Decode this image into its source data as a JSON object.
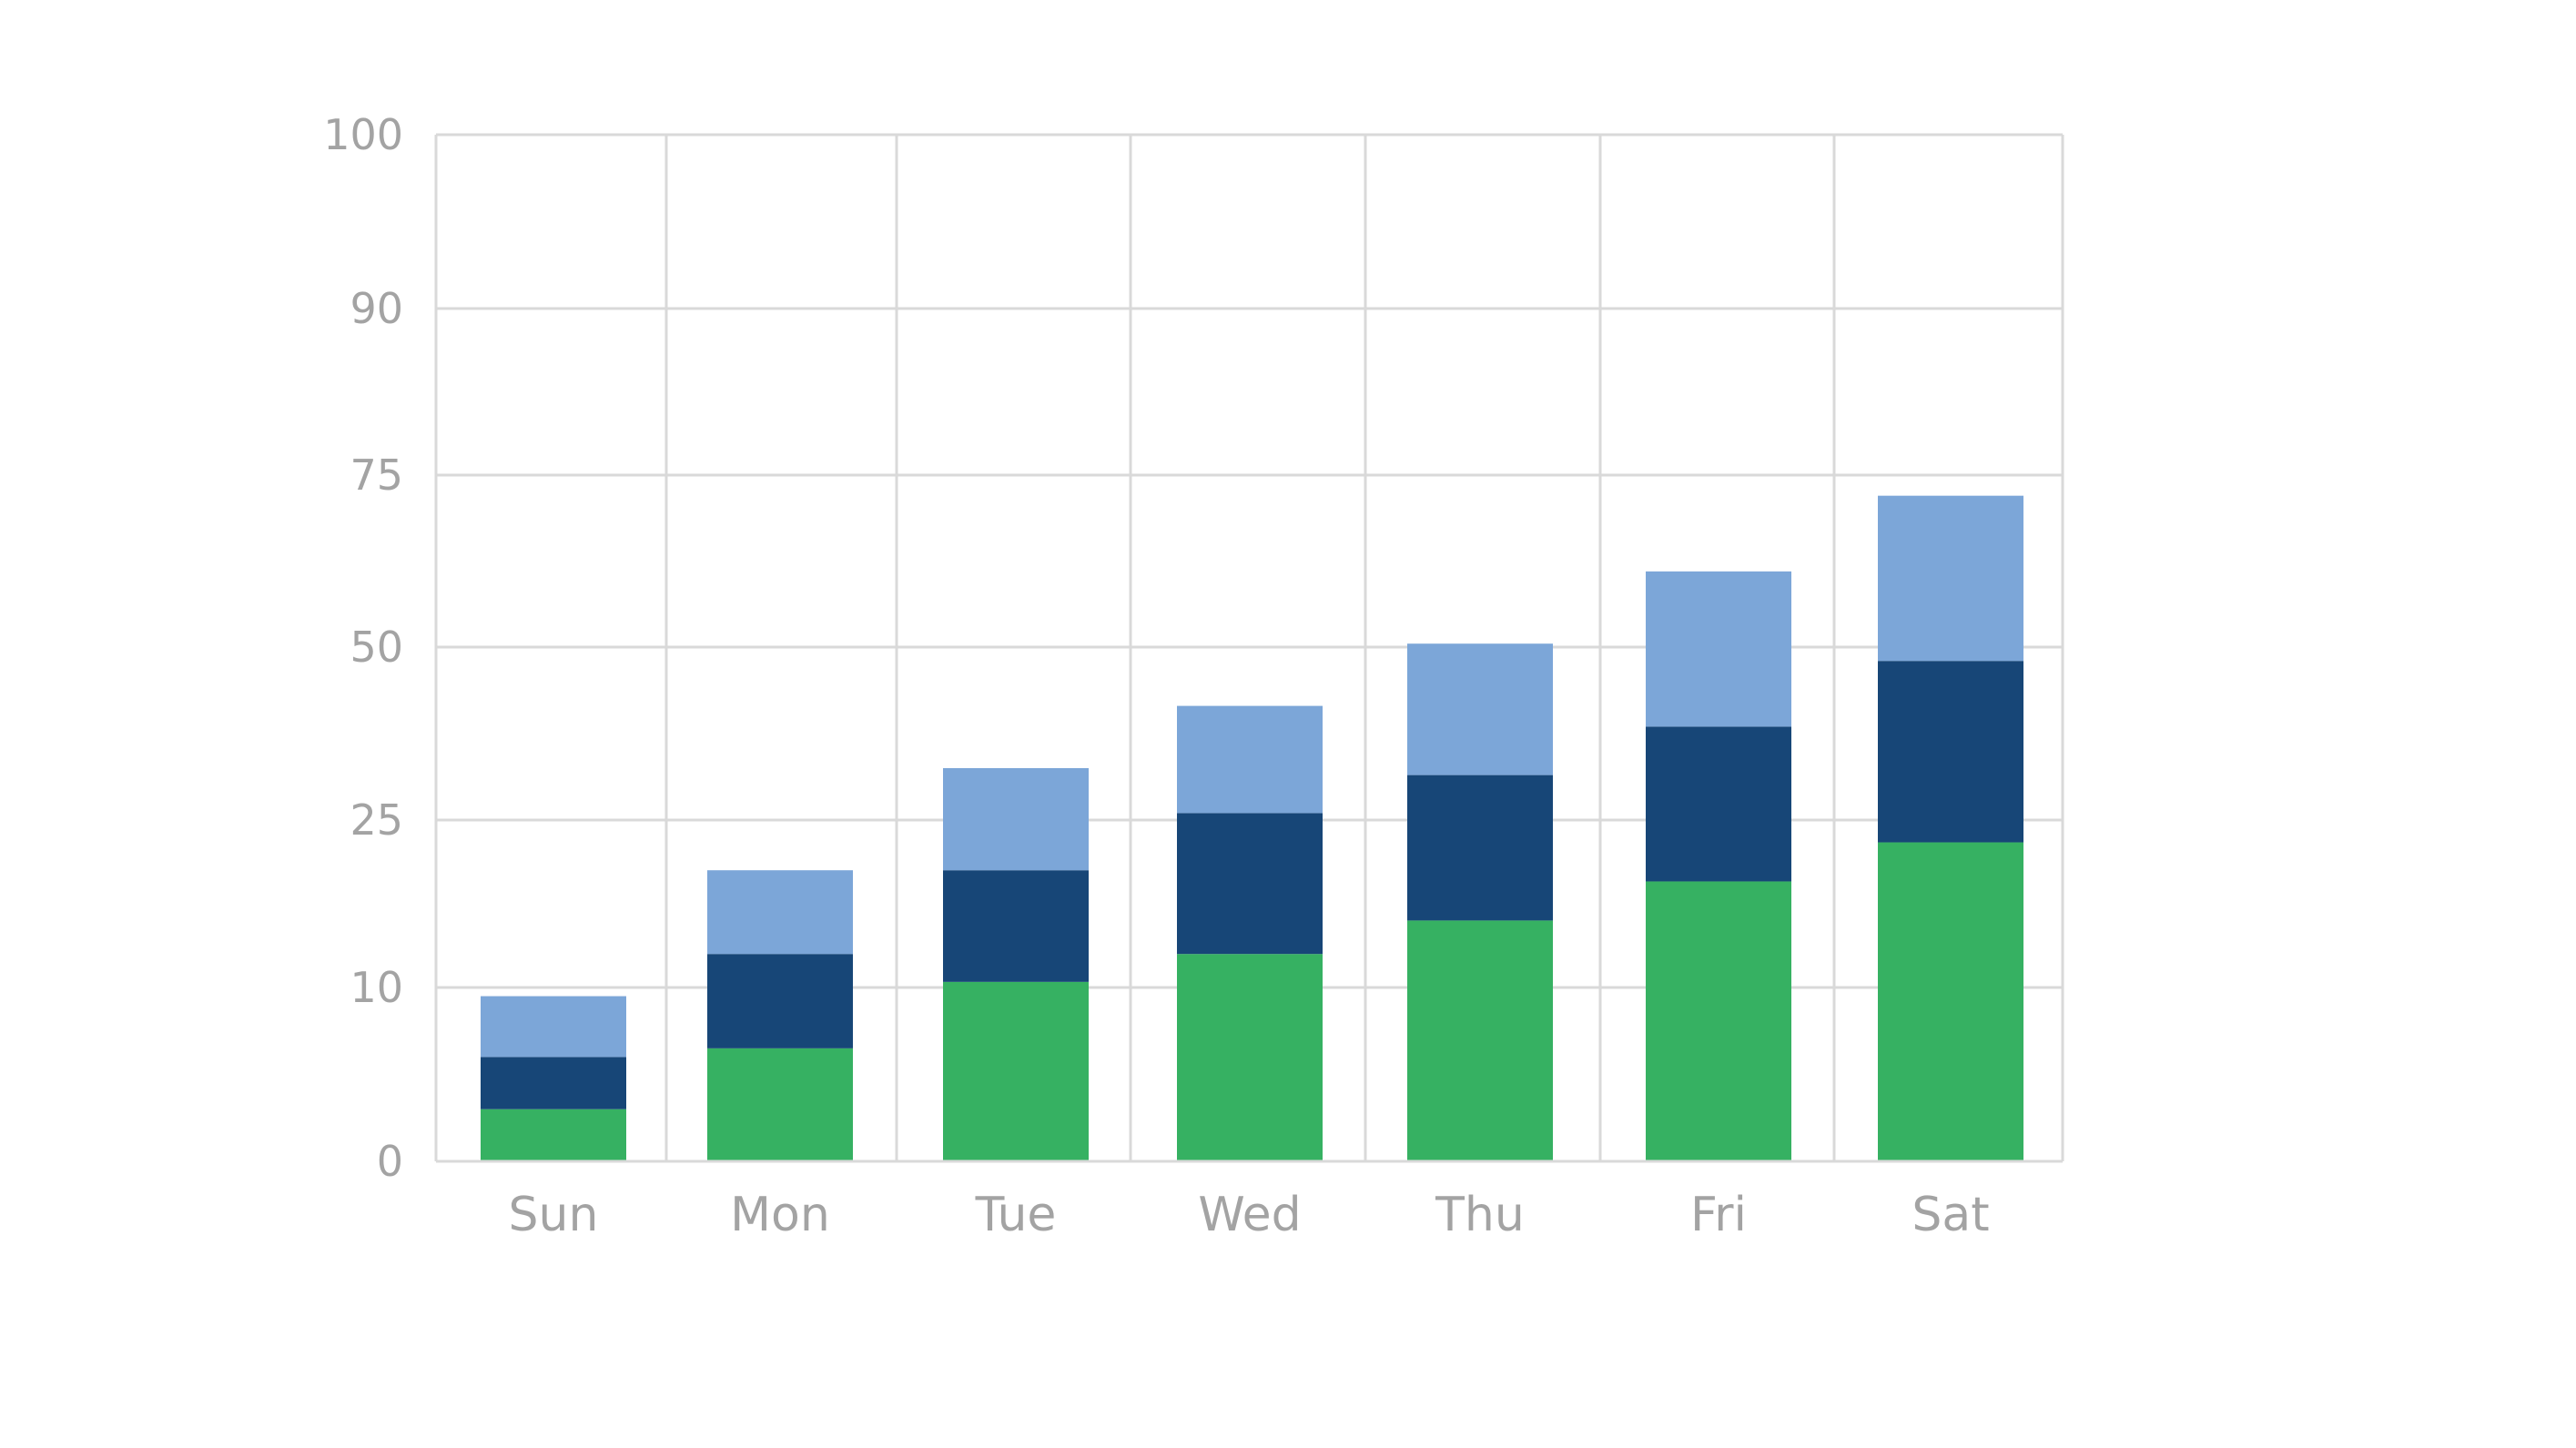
{
  "chart_data": {
    "type": "bar",
    "stacked": true,
    "categories": [
      "Sun",
      "Mon",
      "Tue",
      "Wed",
      "Thu",
      "Fri",
      "Sat"
    ],
    "series": [
      {
        "values": [
          3,
          6.5,
          10.5,
          13,
          16,
          19.5,
          23
        ]
      },
      {
        "values": [
          3,
          6.5,
          10,
          13,
          15.5,
          19,
          25
        ]
      },
      {
        "values": [
          3.5,
          7.5,
          12,
          15.5,
          19,
          22.5,
          24
        ]
      }
    ],
    "y_ticks": [
      "0",
      "10",
      "25",
      "50",
      "75",
      "90",
      "100"
    ],
    "ylim": [
      0,
      100
    ],
    "grid": true,
    "legend": false,
    "colors": [
      "#36b162",
      "#174677",
      "#7ca6d8"
    ],
    "grid_color": "#d9d9d9",
    "tick_label_color": "#a3a3a3"
  }
}
